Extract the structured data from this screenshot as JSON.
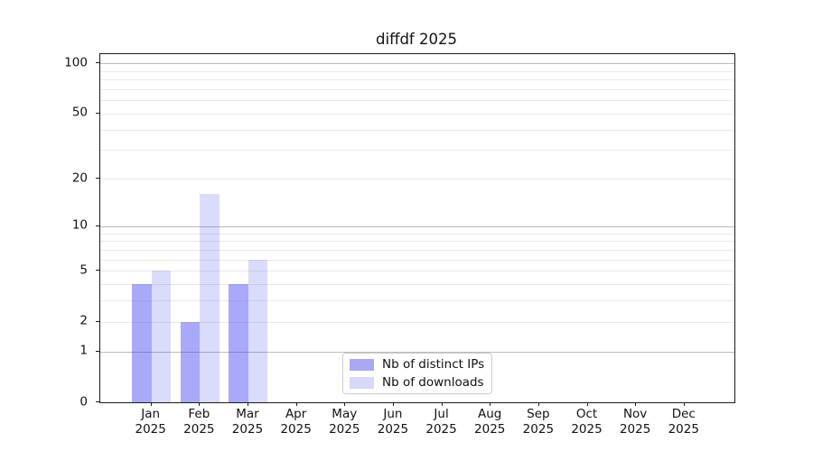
{
  "chart_data": {
    "type": "bar",
    "title": "diffdf 2025",
    "categories": [
      "Jan",
      "Feb",
      "Mar",
      "Apr",
      "May",
      "Jun",
      "Jul",
      "Aug",
      "Sep",
      "Oct",
      "Nov",
      "Dec"
    ],
    "category_year_line": "2025",
    "series": [
      {
        "name": "Nb of distinct IPs",
        "swatch_color": "#a9a9f2",
        "fill_color": "rgba(55,55,240,0.43)",
        "values": [
          4,
          2,
          4,
          0,
          0,
          0,
          0,
          0,
          0,
          0,
          0,
          0
        ]
      },
      {
        "name": "Nb of downloads",
        "swatch_color": "#d8d8f9",
        "fill_color": "rgba(40,40,230,0.17)",
        "values": [
          5,
          16,
          6,
          0,
          0,
          0,
          0,
          0,
          0,
          0,
          0,
          0
        ]
      }
    ],
    "xlabel": "",
    "ylabel": "",
    "y_scale": "log1p",
    "ylim": [
      0,
      115
    ],
    "y_ticks": [
      0,
      1,
      2,
      5,
      10,
      20,
      50,
      100
    ],
    "y_major_gridlines": [
      1,
      10,
      100
    ],
    "y_minor_gridlines": [
      2,
      3,
      4,
      5,
      6,
      7,
      8,
      9,
      20,
      30,
      40,
      50,
      60,
      70,
      80,
      90
    ],
    "grid": "on",
    "legend_position": "lower center (inside axes)"
  },
  "colors": {
    "background": "#ffffff",
    "major_grid": "#bcbcbc",
    "minor_grid": "#e9e9e9",
    "spine": "#1a1a1a",
    "text": "#111111",
    "legend_border": "#cccccc"
  }
}
